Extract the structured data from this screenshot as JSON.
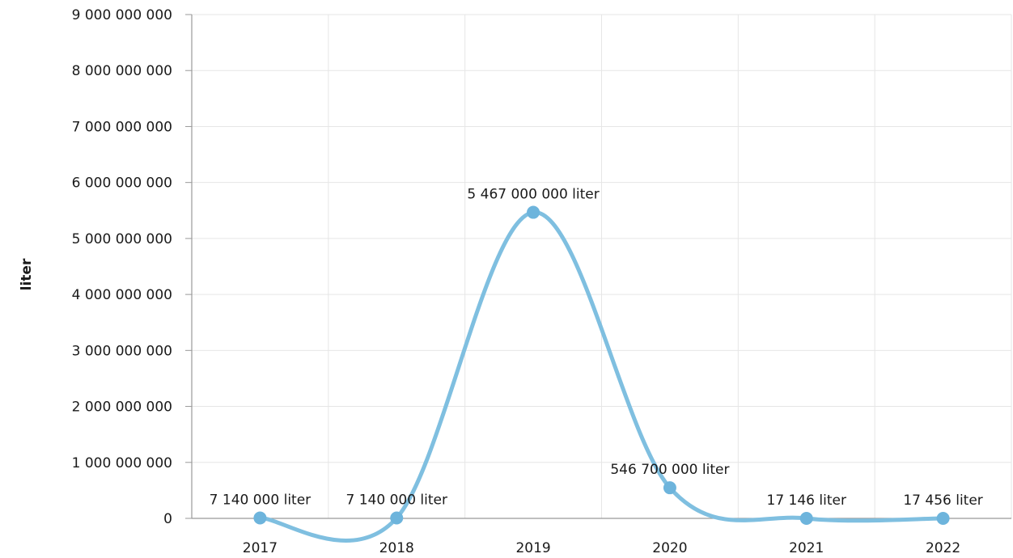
{
  "chart_data": {
    "type": "line",
    "smooth": true,
    "title": "",
    "xlabel": "",
    "ylabel": "liter",
    "categories": [
      "2017",
      "2018",
      "2019",
      "2020",
      "2021",
      "2022"
    ],
    "series": [
      {
        "values": [
          7140000,
          7140000,
          5467000000,
          546700000,
          17146,
          17456
        ],
        "data_labels": [
          "7 140 000 liter",
          "7 140 000 liter",
          "5 467 000 000 liter",
          "546 700 000 liter",
          "17 146 liter",
          "17 456 liter"
        ],
        "color": "#7fbfe0",
        "marker_color": "#6db4dc"
      }
    ],
    "ylim": [
      0,
      9000000000
    ],
    "yticks": [
      0,
      1000000000,
      2000000000,
      3000000000,
      4000000000,
      5000000000,
      6000000000,
      7000000000,
      8000000000,
      9000000000
    ],
    "ytick_labels": [
      "0",
      "1 000 000 000",
      "2 000 000 000",
      "3 000 000 000",
      "4 000 000 000",
      "5 000 000 000",
      "6 000 000 000",
      "7 000 000 000",
      "8 000 000 000",
      "9 000 000 000"
    ],
    "grid": true,
    "legend": "none"
  }
}
